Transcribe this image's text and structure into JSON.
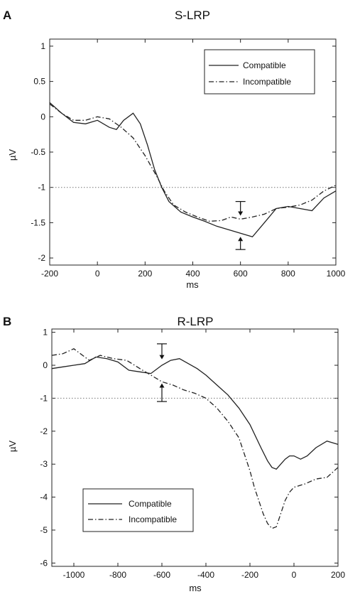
{
  "chart_data": [
    {
      "type": "line",
      "panel": "A",
      "title": "S-LRP",
      "xlabel": "ms",
      "ylabel": "µV",
      "xlim": [
        -200,
        1000
      ],
      "ylim": [
        -2.1,
        1.1
      ],
      "xticks": [
        -200,
        0,
        200,
        400,
        600,
        800,
        1000
      ],
      "yticks": [
        1,
        0.5,
        0,
        -0.5,
        -1,
        -1.5,
        -2
      ],
      "ytick_labels": [
        "1",
        "0.5",
        "0",
        "-0.5",
        "-1",
        "-1.5",
        "-2"
      ],
      "reference_line_y": -1,
      "grid": false,
      "legend": {
        "position": "top-right",
        "entries": [
          "Compatible",
          "Incompatible"
        ]
      },
      "series": [
        {
          "name": "Compatible",
          "style": "solid",
          "x": [
            -200,
            -150,
            -100,
            -50,
            0,
            50,
            80,
            110,
            150,
            180,
            210,
            240,
            270,
            300,
            350,
            400,
            450,
            500,
            550,
            600,
            650,
            700,
            750,
            800,
            850,
            900,
            950,
            1000
          ],
          "y": [
            0.2,
            0.05,
            -0.08,
            -0.1,
            -0.05,
            -0.15,
            -0.18,
            -0.05,
            0.05,
            -0.1,
            -0.4,
            -0.75,
            -1.0,
            -1.2,
            -1.35,
            -1.42,
            -1.48,
            -1.55,
            -1.6,
            -1.65,
            -1.7,
            -1.5,
            -1.3,
            -1.27,
            -1.3,
            -1.33,
            -1.15,
            -1.05
          ]
        },
        {
          "name": "Incompatible",
          "style": "dash-dot",
          "x": [
            -200,
            -150,
            -100,
            -50,
            0,
            50,
            100,
            150,
            200,
            250,
            280,
            320,
            370,
            420,
            470,
            520,
            560,
            600,
            650,
            700,
            750,
            800,
            850,
            900,
            950,
            1000
          ],
          "y": [
            0.18,
            0.05,
            -0.05,
            -0.05,
            0.0,
            -0.03,
            -0.15,
            -0.3,
            -0.55,
            -0.85,
            -1.05,
            -1.25,
            -1.35,
            -1.42,
            -1.48,
            -1.47,
            -1.42,
            -1.45,
            -1.42,
            -1.38,
            -1.3,
            -1.28,
            -1.25,
            -1.18,
            -1.05,
            -0.97
          ]
        }
      ],
      "markers": [
        {
          "series": "Incompatible",
          "x": 600,
          "y_start": -1.2,
          "y_end": -1.4,
          "direction": "down"
        },
        {
          "series": "Compatible",
          "x": 600,
          "y_start": -1.88,
          "y_end": -1.7,
          "direction": "up"
        }
      ]
    },
    {
      "type": "line",
      "panel": "B",
      "title": "R-LRP",
      "xlabel": "ms",
      "ylabel": "µV",
      "xlim": [
        -1100,
        200
      ],
      "ylim": [
        -6.1,
        1.1
      ],
      "xticks": [
        -1000,
        -800,
        -600,
        -400,
        -200,
        0,
        200
      ],
      "yticks": [
        1,
        0,
        -1,
        -2,
        -3,
        -4,
        -5,
        -6
      ],
      "ytick_labels": [
        "1",
        "0",
        "-1",
        "-2",
        "-3",
        "-4",
        "-5",
        "-6"
      ],
      "reference_line_y": -1,
      "grid": false,
      "legend": {
        "position": "bottom-left",
        "entries": [
          "Compatible",
          "Incompatible"
        ]
      },
      "series": [
        {
          "name": "Compatible",
          "style": "solid",
          "x": [
            -1100,
            -1050,
            -1000,
            -950,
            -900,
            -850,
            -800,
            -750,
            -700,
            -650,
            -600,
            -560,
            -520,
            -480,
            -440,
            -400,
            -350,
            -300,
            -250,
            -200,
            -150,
            -120,
            -100,
            -80,
            -60,
            -40,
            -20,
            0,
            30,
            60,
            100,
            150,
            200
          ],
          "y": [
            -0.1,
            -0.05,
            0.0,
            0.05,
            0.25,
            0.2,
            0.1,
            -0.15,
            -0.2,
            -0.25,
            0.0,
            0.15,
            0.2,
            0.05,
            -0.1,
            -0.3,
            -0.6,
            -0.9,
            -1.3,
            -1.8,
            -2.5,
            -2.9,
            -3.1,
            -3.15,
            -3.0,
            -2.85,
            -2.75,
            -2.75,
            -2.85,
            -2.75,
            -2.5,
            -2.3,
            -2.4
          ]
        },
        {
          "name": "Incompatible",
          "style": "dash-dot",
          "x": [
            -1100,
            -1050,
            -1000,
            -960,
            -930,
            -880,
            -820,
            -760,
            -700,
            -650,
            -600,
            -550,
            -500,
            -450,
            -400,
            -350,
            -300,
            -250,
            -200,
            -180,
            -160,
            -140,
            -120,
            -100,
            -80,
            -60,
            -40,
            -20,
            0,
            50,
            100,
            150,
            200
          ],
          "y": [
            0.3,
            0.35,
            0.5,
            0.3,
            0.15,
            0.3,
            0.2,
            0.15,
            -0.1,
            -0.3,
            -0.5,
            -0.6,
            -0.75,
            -0.85,
            -1.0,
            -1.3,
            -1.7,
            -2.2,
            -3.2,
            -3.7,
            -4.1,
            -4.5,
            -4.8,
            -4.95,
            -4.9,
            -4.5,
            -4.1,
            -3.85,
            -3.7,
            -3.6,
            -3.45,
            -3.4,
            -3.1
          ]
        }
      ],
      "markers": [
        {
          "series": "Compatible",
          "x": -600,
          "y_start": 0.65,
          "y_end": 0.18,
          "direction": "down"
        },
        {
          "series": "Incompatible",
          "x": -600,
          "y_start": -1.1,
          "y_end": -0.55,
          "direction": "up"
        }
      ]
    }
  ]
}
